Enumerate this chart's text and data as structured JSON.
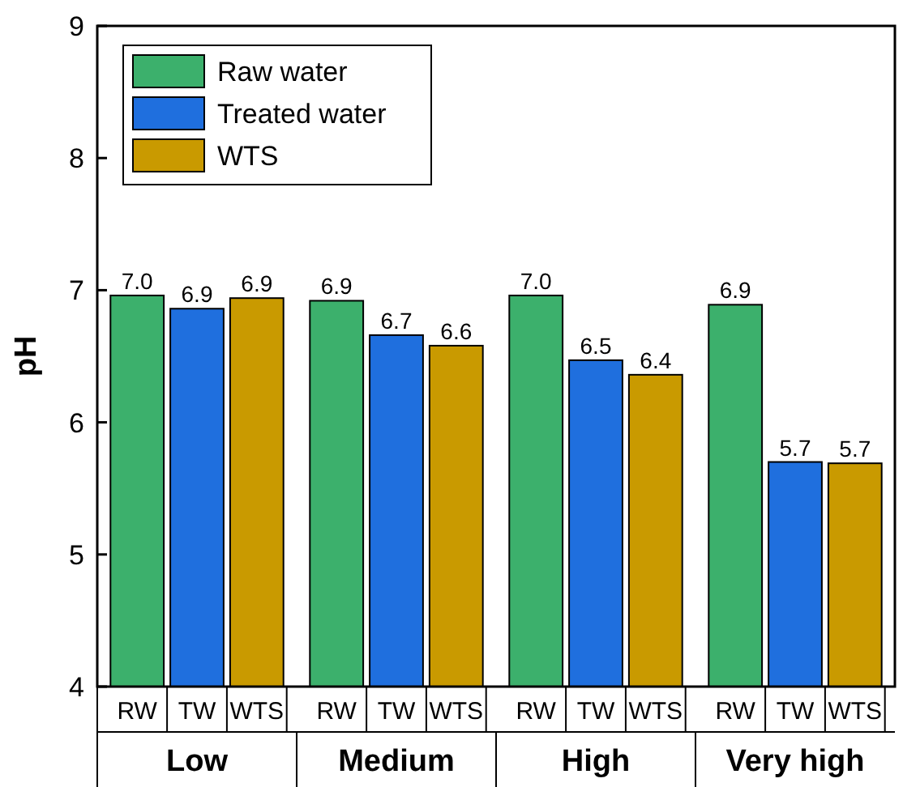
{
  "chart_data": {
    "type": "bar",
    "ylabel": "pH",
    "categories": [
      "Low",
      "Medium",
      "High",
      "Very high"
    ],
    "series": [
      {
        "name": "Raw water",
        "color": "#3cb06c",
        "values": [
          6.96,
          6.92,
          6.96,
          6.89
        ],
        "value_labels": [
          "7.0",
          "6.9",
          "7.0",
          "6.9"
        ]
      },
      {
        "name": "Treated water",
        "color": "#1f6fde",
        "values": [
          6.86,
          6.66,
          6.47,
          5.7
        ],
        "value_labels": [
          "6.9",
          "6.7",
          "6.5",
          "5.7"
        ]
      },
      {
        "name": "WTS",
        "color": "#c99a00",
        "values": [
          6.94,
          6.58,
          6.36,
          5.69
        ],
        "value_labels": [
          "6.9",
          "6.6",
          "6.4",
          "5.7"
        ]
      }
    ],
    "ylim": [
      4,
      9
    ],
    "yticks": [
      4,
      5,
      6,
      7,
      8,
      9
    ],
    "legend": "top left",
    "grid": false,
    "annotations": [
      "RW",
      "TW",
      "WTS",
      "RW",
      "TW",
      "WTS",
      "RW",
      "TW",
      "WTS",
      "RW",
      "TW",
      "WTS"
    ]
  }
}
